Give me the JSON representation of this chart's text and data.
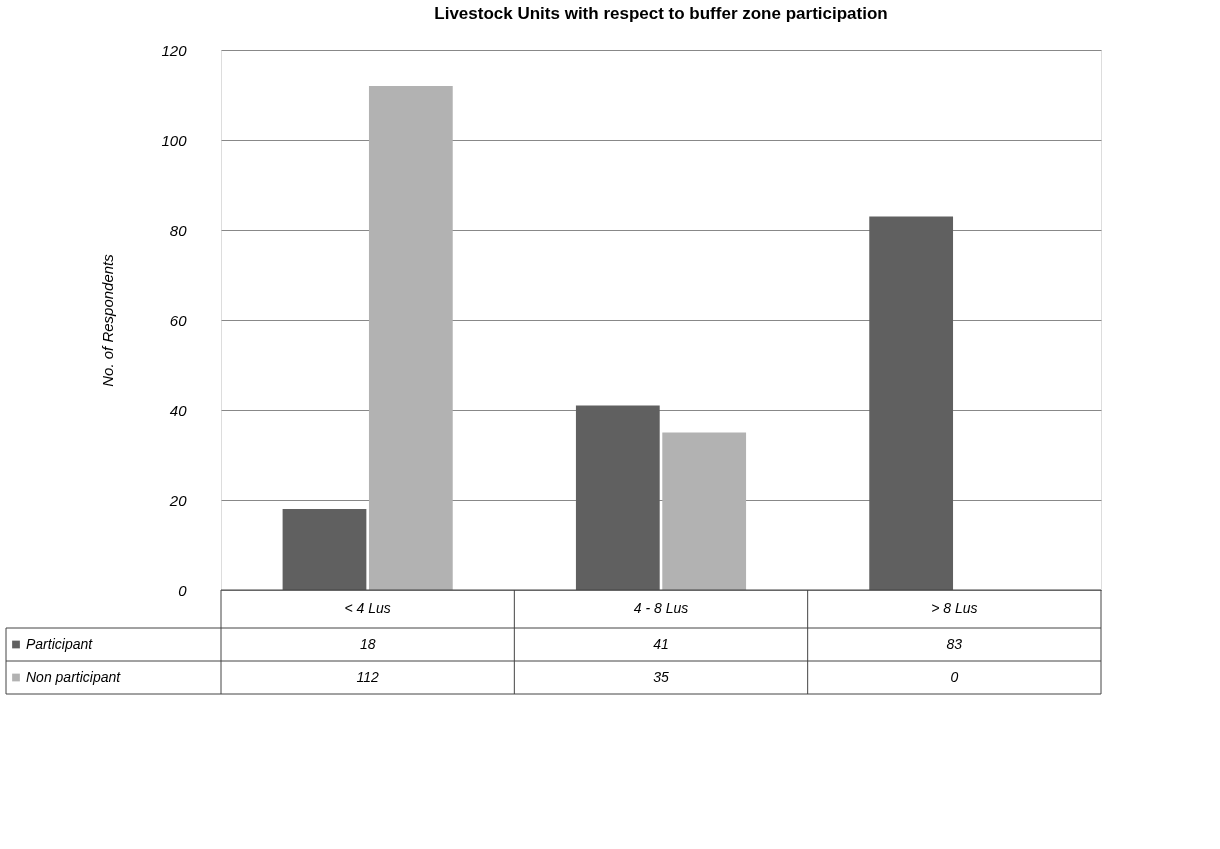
{
  "chart_data": {
    "type": "bar",
    "title": "Livestock Units with respect to buffer zone participation",
    "ylabel": "No. of Respondents",
    "categories": [
      "< 4 Lus",
      "4 - 8 Lus",
      "> 8 Lus"
    ],
    "series": [
      {
        "name": "Participant",
        "color": "#606060",
        "values": [
          18,
          41,
          83
        ]
      },
      {
        "name": "Non participant",
        "color": "#b2b2b2",
        "values": [
          112,
          35,
          0
        ]
      }
    ],
    "ylim": [
      0,
      120
    ],
    "yticks": [
      0,
      20,
      40,
      60,
      80,
      100,
      120
    ],
    "grid": "y",
    "legend": "bottom",
    "data_labels": true
  }
}
